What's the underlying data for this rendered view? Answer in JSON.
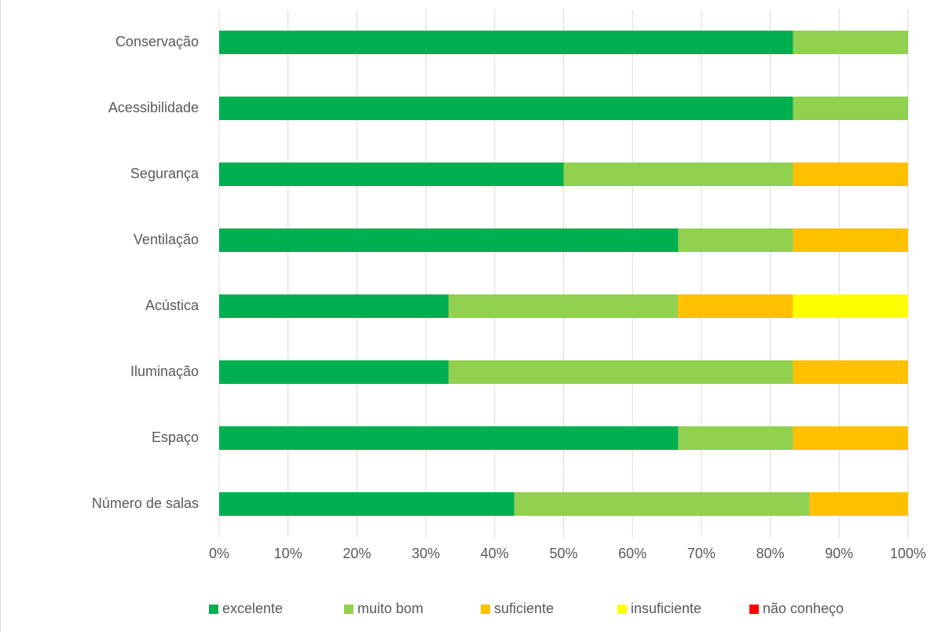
{
  "chart_data": {
    "type": "bar",
    "orientation": "horizontal",
    "stacked": true,
    "percent_stacked": true,
    "categories": [
      "Conservação",
      "Acessibilidade",
      "Segurança",
      "Ventilação",
      "Acústica",
      "Iluminação",
      "Espaço",
      "Número de salas"
    ],
    "series": [
      {
        "name": "excelente",
        "color": "#00b050",
        "values": [
          83.3,
          83.3,
          50.0,
          66.7,
          33.3,
          33.3,
          66.7,
          42.9
        ]
      },
      {
        "name": "muito bom",
        "color": "#92d050",
        "values": [
          16.7,
          16.7,
          33.3,
          16.7,
          33.3,
          50.0,
          16.7,
          42.9
        ]
      },
      {
        "name": "suficiente",
        "color": "#ffc000",
        "values": [
          0,
          0,
          16.7,
          16.7,
          16.7,
          16.7,
          16.7,
          14.3
        ]
      },
      {
        "name": "insuficiente",
        "color": "#ffff00",
        "values": [
          0,
          0,
          0,
          0,
          16.7,
          0,
          0,
          0
        ]
      },
      {
        "name": "não conheço",
        "color": "#ff0000",
        "values": [
          0,
          0,
          0,
          0,
          0,
          0,
          0,
          0
        ]
      }
    ],
    "xlim": [
      0,
      100
    ],
    "x_ticks": [
      "0%",
      "10%",
      "20%",
      "30%",
      "40%",
      "50%",
      "60%",
      "70%",
      "80%",
      "90%",
      "100%"
    ],
    "title": "",
    "xlabel": "",
    "ylabel": "",
    "grid": "vertical",
    "gridline_color": "#d9d9d9",
    "legend_position": "bottom"
  }
}
